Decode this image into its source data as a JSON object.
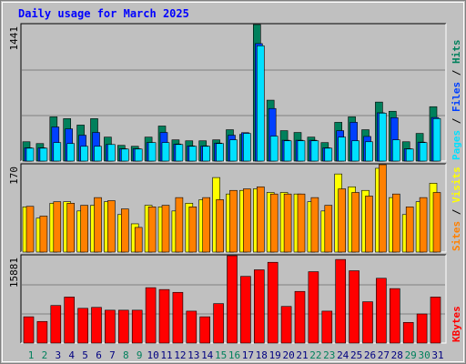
{
  "chart_data": [
    {
      "type": "bar",
      "title": "Daily usage for March 2025",
      "categories": [
        "1",
        "2",
        "3",
        "4",
        "5",
        "6",
        "7",
        "8",
        "9",
        "10",
        "11",
        "12",
        "13",
        "14",
        "15",
        "16",
        "17",
        "18",
        "19",
        "20",
        "21",
        "22",
        "23",
        "24",
        "25",
        "26",
        "27",
        "28",
        "29",
        "30",
        "31"
      ],
      "category_colors": [
        "#00805c",
        "#00805c",
        "#000080",
        "#000080",
        "#000080",
        "#000080",
        "#000080",
        "#00805c",
        "#00805c",
        "#000080",
        "#000080",
        "#000080",
        "#000080",
        "#000080",
        "#00805c",
        "#00805c",
        "#000080",
        "#000080",
        "#000080",
        "#000080",
        "#000080",
        "#00805c",
        "#00805c",
        "#000080",
        "#000080",
        "#000080",
        "#000080",
        "#000080",
        "#00805c",
        "#00805c",
        "#000080"
      ],
      "legend_separator": " / ",
      "ylim": [
        0,
        1441
      ],
      "yticks": [
        1441
      ],
      "series": [
        {
          "name": "Hits",
          "color": "#00805c",
          "values": [
            204,
            185,
            467,
            448,
            380,
            448,
            253,
            166,
            156,
            253,
            370,
            224,
            214,
            214,
            224,
            331,
            282,
            1441,
            643,
            321,
            302,
            253,
            195,
            409,
            467,
            331,
            623,
            526,
            204,
            292,
            574
          ]
        },
        {
          "name": "Files",
          "color": "#0040ff",
          "values": [
            140,
            140,
            360,
            340,
            273,
            302,
            175,
            130,
            130,
            195,
            302,
            180,
            160,
            160,
            190,
            273,
            300,
            1240,
            555,
            220,
            220,
            220,
            140,
            321,
            409,
            260,
            510,
            458,
            130,
            200,
            460
          ]
        },
        {
          "name": "Pages",
          "color": "#00e0ff",
          "values": [
            136,
            136,
            195,
            185,
            156,
            156,
            175,
            127,
            127,
            195,
            195,
            175,
            156,
            156,
            185,
            224,
            292,
            1217,
            263,
            214,
            214,
            214,
            136,
            253,
            214,
            204,
            506,
            224,
            127,
            195,
            448
          ]
        }
      ]
    },
    {
      "type": "bar",
      "ylim": [
        0,
        170
      ],
      "yticks": [
        170
      ],
      "series": [
        {
          "name": "Visits",
          "color": "#ffff00",
          "values": [
            88,
            66,
            95,
            98,
            80,
            91,
            98,
            73,
            55,
            91,
            88,
            80,
            95,
            102,
            145,
            113,
            120,
            123,
            116,
            116,
            113,
            98,
            80,
            152,
            127,
            120,
            163,
            106,
            73,
            98,
            134
          ]
        },
        {
          "name": "Sites",
          "color": "#ff8000",
          "values": [
            89,
            70,
            98,
            95,
            91,
            106,
            100,
            84,
            48,
            88,
            91,
            106,
            88,
            106,
            102,
            120,
            123,
            127,
            113,
            113,
            113,
            106,
            91,
            123,
            116,
            109,
            170,
            113,
            88,
            106,
            116
          ]
        }
      ]
    },
    {
      "type": "bar",
      "ylim": [
        0,
        15881
      ],
      "yticks": [
        15881
      ],
      "series": [
        {
          "name": "KBytes",
          "color": "#ff0000",
          "values": [
            4782,
            3928,
            6831,
            8369,
            6318,
            6489,
            5977,
            5977,
            5977,
            10074,
            9734,
            9221,
            5806,
            4782,
            7172,
            15881,
            12125,
            13320,
            14685,
            6660,
            9391,
            12978,
            5806,
            15198,
            13149,
            7513,
            11782,
            9904,
            3756,
            5293,
            8369
          ]
        }
      ]
    }
  ]
}
